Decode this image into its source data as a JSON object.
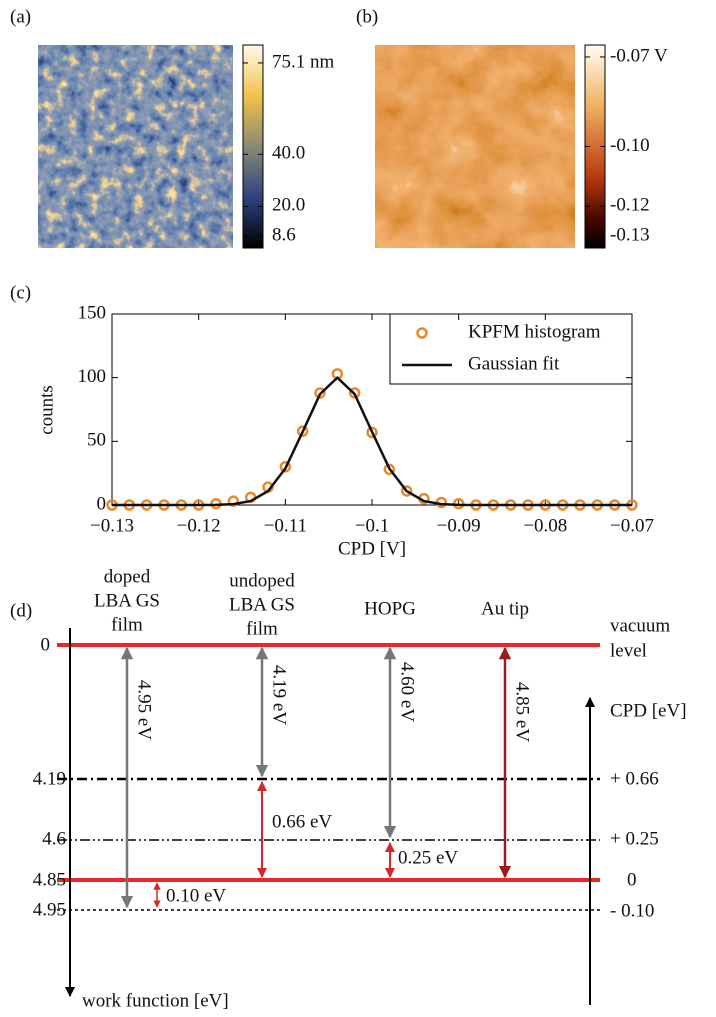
{
  "panel_a": {
    "label": "(a)",
    "colorbar": {
      "lim": [
        4,
        82
      ],
      "ticks": [
        {
          "value": 75.1,
          "label": "75.1 nm"
        },
        {
          "value": 40.0,
          "label": "40.0"
        },
        {
          "value": 20.0,
          "label": "20.0"
        },
        8.6
      ]
    }
  },
  "panel_b": {
    "label": "(b)",
    "colorbar": {
      "lim": [
        -0.134,
        -0.066
      ],
      "ticks": [
        {
          "value": -0.07,
          "label": "-0.07 V"
        },
        {
          "value": -0.1,
          "label": "-0.10"
        },
        -0.12,
        -0.13
      ]
    }
  },
  "chart_data": {
    "type": "line",
    "title": "(c)",
    "x_label": "CPD [V]",
    "y_label": "counts",
    "x": [
      -0.13,
      -0.128,
      -0.126,
      -0.124,
      -0.122,
      -0.12,
      -0.118,
      -0.116,
      -0.114,
      -0.112,
      -0.11,
      -0.108,
      -0.106,
      -0.104,
      -0.102,
      -0.1,
      -0.098,
      -0.096,
      -0.094,
      -0.092,
      -0.09,
      -0.088,
      -0.086,
      -0.084,
      -0.082,
      -0.08,
      -0.078,
      -0.076,
      -0.074,
      -0.072,
      -0.07
    ],
    "series": [
      {
        "name": "KPFM histogram",
        "color": "#e8892f",
        "mode": "markers",
        "values": [
          0,
          0,
          0,
          0,
          0,
          0,
          1,
          3,
          6,
          14,
          30,
          58,
          88,
          103,
          88,
          57,
          28,
          11,
          5,
          2,
          1,
          0,
          0,
          0,
          0,
          0,
          0,
          0,
          0,
          0,
          0
        ]
      },
      {
        "name": "Gaussian fit",
        "color": "#111111",
        "mode": "line",
        "values": [
          0,
          0,
          0,
          0,
          0,
          0,
          0.1,
          0.7,
          3.1,
          10.9,
          28.7,
          57.5,
          87.1,
          100,
          87.1,
          57.5,
          28.7,
          10.9,
          3.1,
          0.7,
          0.1,
          0,
          0,
          0,
          0,
          0,
          0,
          0,
          0,
          0,
          0
        ]
      }
    ],
    "xlim": [
      -0.13,
      -0.07
    ],
    "xticks": [
      {
        "value": -0.13,
        "label": "−0.13"
      },
      {
        "value": -0.12,
        "label": "−0.12"
      },
      {
        "value": -0.11,
        "label": "−0.11"
      },
      {
        "value": -0.1,
        "label": "−0.1"
      },
      {
        "value": -0.09,
        "label": "−0.09"
      },
      {
        "value": -0.08,
        "label": "−0.08"
      },
      {
        "value": -0.07,
        "label": "−0.07"
      }
    ],
    "ylim": [
      0,
      150
    ],
    "yticks": [
      0,
      50,
      100,
      150
    ],
    "legend": "upper right"
  },
  "panel_d": {
    "label": "(d)",
    "columns": [
      [
        "doped",
        "LBA GS",
        "film"
      ],
      [
        "undoped",
        "LBA GS",
        "film"
      ],
      [
        "HOPG"
      ],
      [
        "Au tip"
      ]
    ],
    "vacuum_level": [
      "vacuum",
      "level"
    ],
    "work_function_levels": [
      "0",
      "4.19",
      "4.6",
      "4.85",
      "4.95"
    ],
    "cpd_axis_label": "CPD [eV]",
    "cpd_levels": [
      "+ 0.66",
      "+ 0.25",
      "0",
      "- 0.10"
    ],
    "work_function_axis_label": "work function [eV]",
    "arrows": [
      "4.95 eV",
      "4.19 eV",
      "4.60 eV",
      "4.85 eV",
      "0.66 eV",
      "0.25 eV",
      "0.10 eV"
    ]
  }
}
